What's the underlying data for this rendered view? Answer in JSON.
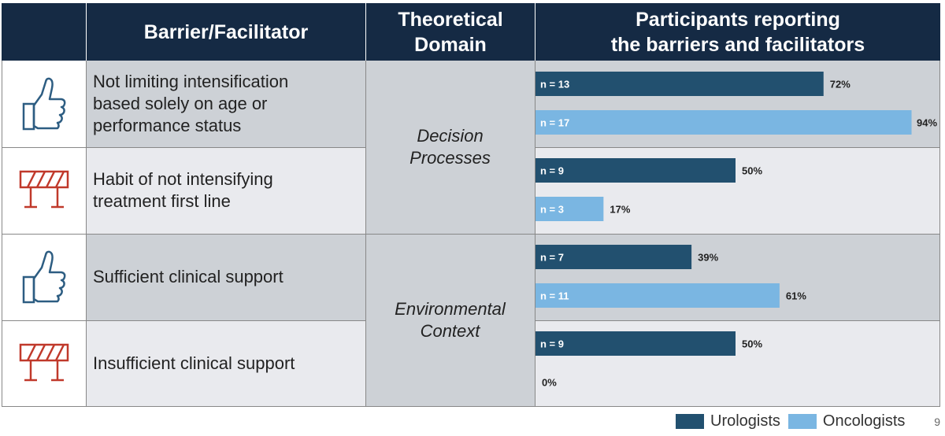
{
  "header": {
    "col1": "",
    "col2": "Barrier/Facilitator",
    "col3_line1": "Theoretical",
    "col3_line2": "Domain",
    "col4_line1": "Participants reporting",
    "col4_line2": "the barriers and facilitators"
  },
  "rows": [
    {
      "icon": "thumbs-up-icon",
      "text_lines": [
        "Not limiting intensification",
        "based solely on age or",
        "performance status"
      ]
    },
    {
      "icon": "barrier-icon",
      "text_lines": [
        "Habit of not intensifying",
        "treatment first line"
      ]
    },
    {
      "icon": "thumbs-up-icon",
      "text_lines": [
        "Sufficient clinical support"
      ]
    },
    {
      "icon": "barrier-icon",
      "text_lines": [
        "Insufficient clinical support"
      ]
    }
  ],
  "domains": [
    {
      "lines": [
        "Decision",
        "Processes"
      ]
    },
    {
      "lines": [
        "Environmental",
        "Context"
      ]
    }
  ],
  "colors": {
    "urologists": "#22506f",
    "oncologists": "#7ab6e2",
    "facilitator_icon": "#2d5d82",
    "barrier_icon": "#c0392b"
  },
  "chart_data": {
    "type": "bar",
    "orientation": "horizontal",
    "categories": [
      "Not limiting intensification based solely on age or performance status",
      "Habit of not intensifying treatment first line",
      "Sufficient clinical support",
      "Insufficient clinical support"
    ],
    "series": [
      {
        "name": "Urologists",
        "values": [
          72,
          50,
          39,
          50
        ],
        "n_labels": [
          "n = 13",
          "n = 9",
          "n = 7",
          "n = 9"
        ],
        "pct_labels": [
          "72%",
          "50%",
          "39%",
          "50%"
        ]
      },
      {
        "name": "Oncologists",
        "values": [
          94,
          17,
          61,
          0
        ],
        "n_labels": [
          "n = 17",
          "n = 3",
          "n = 11",
          ""
        ],
        "pct_labels": [
          "94%",
          "17%",
          "61%",
          "0%"
        ]
      }
    ],
    "xlim": [
      0,
      100
    ],
    "legend": "bottom-right"
  },
  "page_number": "9"
}
